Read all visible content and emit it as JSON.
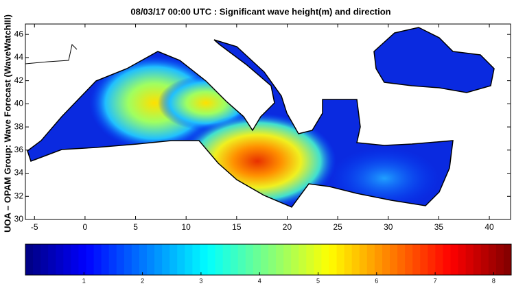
{
  "chart_data": {
    "type": "map",
    "title": "08/03/17 00:00 UTC : Significant wave height(m) and direction",
    "y_label": "UOA – OPAM Group: Wave Forecast  (WaveWatchIII)",
    "xlim": [
      -5.9,
      42.1
    ],
    "xticks": [
      -5,
      0,
      5,
      10,
      15,
      20,
      25,
      30,
      35,
      40
    ],
    "ylim": [
      30,
      46.9
    ],
    "yticks": [
      30,
      32,
      34,
      36,
      38,
      40,
      42,
      44,
      46
    ],
    "colorbar": {
      "lim": [
        0,
        8.3
      ],
      "ticks": [
        1,
        2,
        3,
        4,
        5,
        6,
        7,
        8
      ]
    }
  }
}
